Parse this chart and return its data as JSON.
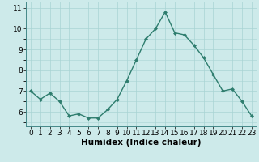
{
  "x": [
    0,
    1,
    2,
    3,
    4,
    5,
    6,
    7,
    8,
    9,
    10,
    11,
    12,
    13,
    14,
    15,
    16,
    17,
    18,
    19,
    20,
    21,
    22,
    23
  ],
  "y": [
    7.0,
    6.6,
    6.9,
    6.5,
    5.8,
    5.9,
    5.7,
    5.7,
    6.1,
    6.6,
    7.5,
    8.5,
    9.5,
    10.0,
    10.8,
    9.8,
    9.7,
    9.2,
    8.6,
    7.8,
    7.0,
    7.1,
    6.5,
    5.8
  ],
  "line_color": "#2e7d6e",
  "marker": "D",
  "marker_size": 2.0,
  "bg_color": "#cdeaea",
  "grid_color": "#a8d4d4",
  "xlabel": "Humidex (Indice chaleur)",
  "xlabel_fontsize": 7.5,
  "xlim": [
    -0.5,
    23.5
  ],
  "ylim": [
    5.3,
    11.3
  ],
  "yticks": [
    6,
    7,
    8,
    9,
    10,
    11
  ],
  "xticks": [
    0,
    1,
    2,
    3,
    4,
    5,
    6,
    7,
    8,
    9,
    10,
    11,
    12,
    13,
    14,
    15,
    16,
    17,
    18,
    19,
    20,
    21,
    22,
    23
  ],
  "tick_fontsize": 6.5,
  "line_width": 1.0
}
